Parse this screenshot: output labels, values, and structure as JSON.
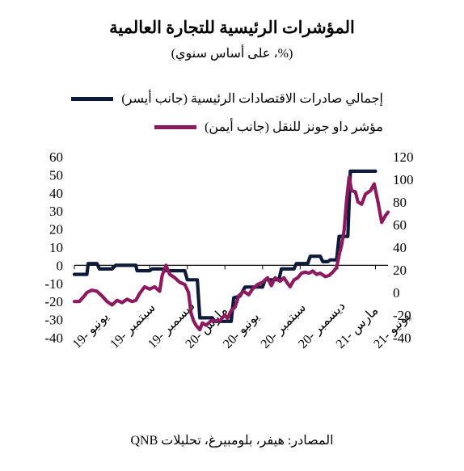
{
  "title": "المؤشرات الرئيسية للتجارة العالمية",
  "subtitle": "(%، على أساس سنوي)",
  "source": "المصادر: هيفر، بلومبيرغ، تحليلات QNB",
  "colors": {
    "navy": "#0d1a3a",
    "maroon": "#8b1a5e"
  },
  "chart_data": {
    "type": "line",
    "title": "المؤشرات الرئيسية للتجارة العالمية",
    "subtitle": "(%، على أساس سنوي)",
    "legend_position": "top-right",
    "x_tick_labels": [
      "يونيو -19",
      "سبتمبر -19",
      "ديسمبر -19",
      "مارس -20",
      "يونيو -20",
      "سبتمبر -20",
      "ديسمبر -20",
      "مارس -21",
      "يونيو -21"
    ],
    "y_left_ticks": [
      60,
      50,
      40,
      30,
      20,
      10,
      0,
      -10,
      -20,
      -30,
      -40
    ],
    "y_right_ticks": [
      120,
      100,
      80,
      60,
      40,
      20,
      0,
      -20,
      -40
    ],
    "y_left_lim": [
      -40,
      60
    ],
    "y_right_lim": [
      -40,
      120
    ],
    "x_range_months": [
      0,
      25
    ],
    "series": [
      {
        "name": "إجمالي صادرات الاقتصادات الرئيسية (جانب أيسر)",
        "axis": "left",
        "color": "#0d1a3a",
        "points": [
          [
            0.0,
            -5
          ],
          [
            1.0,
            -5
          ],
          [
            1.1,
            1
          ],
          [
            1.8,
            1
          ],
          [
            2.0,
            -2
          ],
          [
            3.0,
            -2
          ],
          [
            3.3,
            0
          ],
          [
            4.9,
            0
          ],
          [
            5.0,
            -3
          ],
          [
            6.0,
            -3
          ],
          [
            6.2,
            -2
          ],
          [
            7.0,
            -2
          ],
          [
            7.3,
            -3
          ],
          [
            8.8,
            -3
          ],
          [
            9.0,
            -8
          ],
          [
            9.8,
            -8
          ],
          [
            10.0,
            -29
          ],
          [
            11.0,
            -29
          ],
          [
            11.2,
            -31
          ],
          [
            12.5,
            -31
          ],
          [
            12.7,
            -18
          ],
          [
            13.2,
            -17
          ],
          [
            13.6,
            -12
          ],
          [
            15.0,
            -12
          ],
          [
            15.2,
            -8
          ],
          [
            16.3,
            -8
          ],
          [
            16.5,
            -2
          ],
          [
            17.5,
            -2
          ],
          [
            17.7,
            1
          ],
          [
            18.6,
            1
          ],
          [
            18.8,
            5
          ],
          [
            19.6,
            5
          ],
          [
            19.8,
            2
          ],
          [
            20.2,
            2
          ],
          [
            20.4,
            3
          ],
          [
            20.9,
            3
          ],
          [
            21.1,
            16
          ],
          [
            21.8,
            16
          ],
          [
            22.0,
            52
          ],
          [
            24.0,
            52
          ]
        ]
      },
      {
        "name": "مؤشر داو جونز للنقل (جانب أيمن)",
        "axis": "right",
        "color": "#8b1a5e",
        "points": [
          [
            0.0,
            -8
          ],
          [
            0.4,
            -8
          ],
          [
            0.8,
            -3
          ],
          [
            1.0,
            0
          ],
          [
            1.4,
            2
          ],
          [
            1.8,
            1
          ],
          [
            2.2,
            -3
          ],
          [
            2.6,
            -8
          ],
          [
            3.0,
            -11
          ],
          [
            3.4,
            -7
          ],
          [
            3.8,
            -9
          ],
          [
            4.2,
            -6
          ],
          [
            4.6,
            -8
          ],
          [
            4.9,
            -7
          ],
          [
            5.2,
            -1
          ],
          [
            5.6,
            5
          ],
          [
            6.0,
            3
          ],
          [
            6.4,
            5
          ],
          [
            6.8,
            1
          ],
          [
            7.0,
            15
          ],
          [
            7.3,
            24
          ],
          [
            7.6,
            16
          ],
          [
            8.0,
            13
          ],
          [
            8.4,
            9
          ],
          [
            8.8,
            7
          ],
          [
            9.1,
            0
          ],
          [
            9.3,
            -18
          ],
          [
            9.5,
            -25
          ],
          [
            9.7,
            -29
          ],
          [
            10.0,
            -33
          ],
          [
            10.2,
            -27
          ],
          [
            10.5,
            -29
          ],
          [
            10.9,
            -25
          ],
          [
            11.2,
            -25
          ],
          [
            11.6,
            -25
          ],
          [
            12.0,
            -20
          ],
          [
            12.2,
            -23
          ],
          [
            12.5,
            -16
          ],
          [
            12.8,
            -13
          ],
          [
            13.1,
            -3
          ],
          [
            13.5,
            1
          ],
          [
            13.9,
            -2
          ],
          [
            14.2,
            3
          ],
          [
            14.6,
            7
          ],
          [
            15.0,
            9
          ],
          [
            15.4,
            13
          ],
          [
            15.7,
            6
          ],
          [
            16.0,
            13
          ],
          [
            16.4,
            10
          ],
          [
            16.7,
            13
          ],
          [
            17.0,
            8
          ],
          [
            17.2,
            5
          ],
          [
            17.5,
            11
          ],
          [
            17.8,
            13
          ],
          [
            18.1,
            17
          ],
          [
            18.4,
            18
          ],
          [
            18.7,
            17
          ],
          [
            19.0,
            19
          ],
          [
            19.3,
            16
          ],
          [
            19.6,
            17
          ],
          [
            20.0,
            14
          ],
          [
            20.3,
            15
          ],
          [
            20.6,
            18
          ],
          [
            20.9,
            22
          ],
          [
            21.1,
            33
          ],
          [
            21.3,
            42
          ],
          [
            21.5,
            55
          ],
          [
            21.7,
            82
          ],
          [
            21.9,
            102
          ],
          [
            22.1,
            90
          ],
          [
            22.4,
            89
          ],
          [
            22.6,
            80
          ],
          [
            22.9,
            78
          ],
          [
            23.2,
            87
          ],
          [
            23.6,
            90
          ],
          [
            23.9,
            96
          ],
          [
            24.2,
            80
          ],
          [
            24.5,
            62
          ],
          [
            24.8,
            68
          ],
          [
            25.0,
            71
          ]
        ]
      }
    ]
  }
}
